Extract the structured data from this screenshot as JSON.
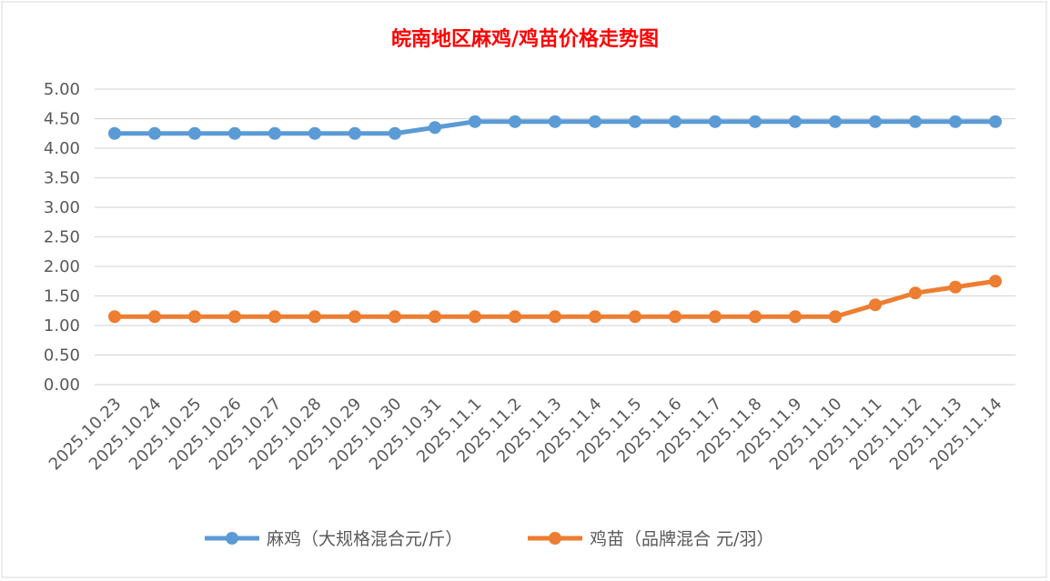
{
  "chart_data": {
    "type": "line",
    "title": "皖南地区麻鸡/鸡苗价格走势图",
    "xlabel": "",
    "ylabel": "",
    "ylim": [
      0,
      5
    ],
    "yticks": [
      "0.00",
      "0.50",
      "1.00",
      "1.50",
      "2.00",
      "2.50",
      "3.00",
      "3.50",
      "4.00",
      "4.50",
      "5.00"
    ],
    "grid": true,
    "legend_position": "bottom",
    "categories": [
      "2025.10.23",
      "2025.10.24",
      "2025.10.25",
      "2025.10.26",
      "2025.10.27",
      "2025.10.28",
      "2025.10.29",
      "2025.10.30",
      "2025.10.31",
      "2025.11.1",
      "2025.11.2",
      "2025.11.3",
      "2025.11.4",
      "2025.11.5",
      "2025.11.6",
      "2025.11.7",
      "2025.11.8",
      "2025.11.9",
      "2025.11.10",
      "2025.11.11",
      "2025.11.12",
      "2025.11.13",
      "2025.11.14"
    ],
    "series": [
      {
        "name": "麻鸡（大规格混合元/斤）",
        "color": "#5b9bd5",
        "values": [
          4.25,
          4.25,
          4.25,
          4.25,
          4.25,
          4.25,
          4.25,
          4.25,
          4.35,
          4.45,
          4.45,
          4.45,
          4.45,
          4.45,
          4.45,
          4.45,
          4.45,
          4.45,
          4.45,
          4.45,
          4.45,
          4.45,
          4.45
        ]
      },
      {
        "name": "鸡苗（品牌混合 元/羽）",
        "color": "#ed7d31",
        "values": [
          1.15,
          1.15,
          1.15,
          1.15,
          1.15,
          1.15,
          1.15,
          1.15,
          1.15,
          1.15,
          1.15,
          1.15,
          1.15,
          1.15,
          1.15,
          1.15,
          1.15,
          1.15,
          1.15,
          1.35,
          1.55,
          1.65,
          1.75
        ]
      }
    ]
  }
}
